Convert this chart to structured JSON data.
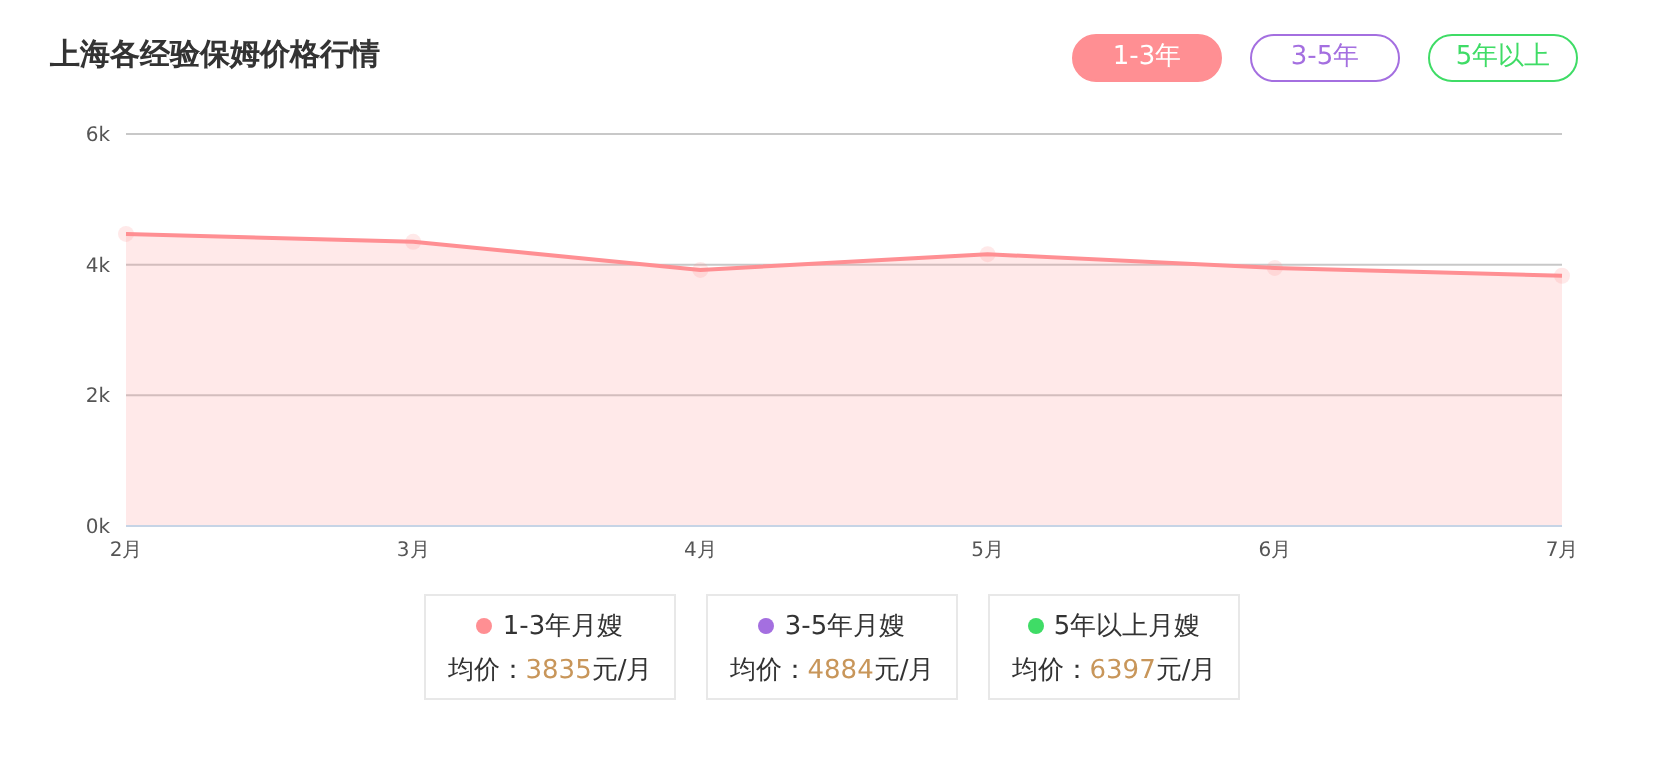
{
  "chart_data": {
    "type": "area",
    "title": "上海各经验保姆价格行情",
    "categories": [
      "2月",
      "3月",
      "4月",
      "5月",
      "6月",
      "7月"
    ],
    "series": [
      {
        "name": "1-3年月嫂",
        "color": "#ff8f93",
        "values": [
          4470,
          4350,
          3920,
          4160,
          3950,
          3830
        ]
      },
      {
        "name": "3-5年月嫂",
        "color": "#a46fe0",
        "values": [
          null,
          null,
          null,
          null,
          null,
          null
        ]
      },
      {
        "name": "5年以上月嫂",
        "color": "#3fdc66",
        "values": [
          null,
          null,
          null,
          null,
          null,
          null
        ]
      }
    ],
    "ylim": [
      0,
      6000
    ],
    "yticks": [
      {
        "value": 0,
        "label": "0k"
      },
      {
        "value": 2000,
        "label": "2k"
      },
      {
        "value": 4000,
        "label": "4k"
      },
      {
        "value": 6000,
        "label": "6k"
      }
    ],
    "grid": "y",
    "marker": "circle",
    "legend": "bottom",
    "annotations": [
      "1-3年",
      "3-5年",
      "5年以上",
      "均价：3835元/月",
      "均价：4884元/月",
      "均价：6397元/月"
    ]
  }
}
